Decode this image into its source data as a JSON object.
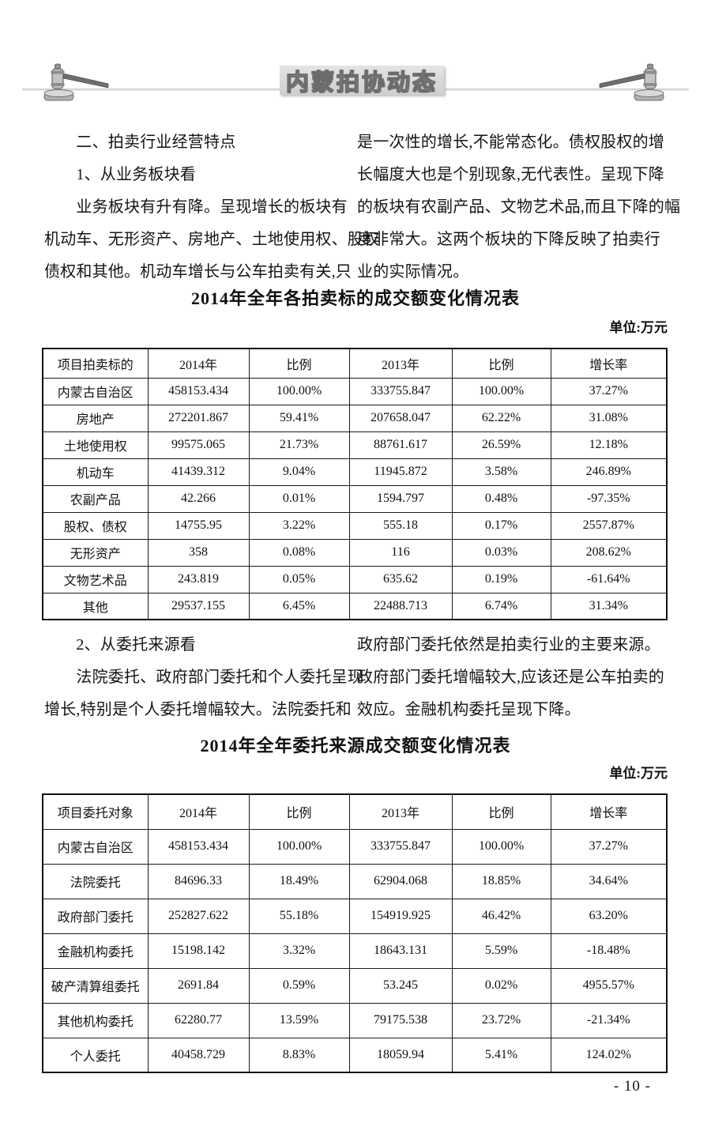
{
  "header": {
    "title": "内蒙拍协动态",
    "left_icon": "gavel-icon",
    "right_icon": "gavel-icon"
  },
  "body": {
    "section1": {
      "left_lines": [
        "　　二、拍卖行业经营特点",
        "　　1、从业务板块看",
        "　　业务板块有升有降。呈现增长的板块有",
        "机动车、无形资产、房地产、土地使用权、股权",
        "债权和其他。机动车增长与公车拍卖有关,只"
      ],
      "right_lines": [
        "是一次性的增长,不能常态化。债权股权的增",
        "长幅度大也是个别现象,无代表性。呈现下降",
        "的板块有农副产品、文物艺术品,而且下降的幅",
        "度非常大。这两个板块的下降反映了拍卖行",
        "业的实际情况。"
      ]
    },
    "section2": {
      "left_lines": [
        "　　2、从委托来源看",
        "　　法院委托、政府部门委托和个人委托呈现",
        "增长,特别是个人委托增幅较大。法院委托和"
      ],
      "right_lines": [
        "政府部门委托依然是拍卖行业的主要来源。",
        "政府部门委托增幅较大,应该还是公车拍卖的",
        "效应。金融机构委托呈现下降。"
      ]
    }
  },
  "table1": {
    "title": "2014年全年各拍卖标的成交额变化情况表",
    "unit": "单位:万元",
    "headers": [
      "项目拍卖标的",
      "2014年",
      "比例",
      "2013年",
      "比例",
      "增长率"
    ],
    "rows": [
      [
        "内蒙古自治区",
        "458153.434",
        "100.00%",
        "333755.847",
        "100.00%",
        "37.27%"
      ],
      [
        "房地产",
        "272201.867",
        "59.41%",
        "207658.047",
        "62.22%",
        "31.08%"
      ],
      [
        "土地使用权",
        "99575.065",
        "21.73%",
        "88761.617",
        "26.59%",
        "12.18%"
      ],
      [
        "机动车",
        "41439.312",
        "9.04%",
        "11945.872",
        "3.58%",
        "246.89%"
      ],
      [
        "农副产品",
        "42.266",
        "0.01%",
        "1594.797",
        "0.48%",
        "-97.35%"
      ],
      [
        "股权、债权",
        "14755.95",
        "3.22%",
        "555.18",
        "0.17%",
        "2557.87%"
      ],
      [
        "无形资产",
        "358",
        "0.08%",
        "116",
        "0.03%",
        "208.62%"
      ],
      [
        "文物艺术品",
        "243.819",
        "0.05%",
        "635.62",
        "0.19%",
        "-61.64%"
      ],
      [
        "其他",
        "29537.155",
        "6.45%",
        "22488.713",
        "6.74%",
        "31.34%"
      ]
    ]
  },
  "table2": {
    "title": "2014年全年委托来源成交额变化情况表",
    "unit": "单位:万元",
    "headers": [
      "项目委托对象",
      "2014年",
      "比例",
      "2013年",
      "比例",
      "增长率"
    ],
    "rows": [
      [
        "内蒙古自治区",
        "458153.434",
        "100.00%",
        "333755.847",
        "100.00%",
        "37.27%"
      ],
      [
        "法院委托",
        "84696.33",
        "18.49%",
        "62904.068",
        "18.85%",
        "34.64%"
      ],
      [
        "政府部门委托",
        "252827.622",
        "55.18%",
        "154919.925",
        "46.42%",
        "63.20%"
      ],
      [
        "金融机构委托",
        "15198.142",
        "3.32%",
        "18643.131",
        "5.59%",
        "-18.48%"
      ],
      [
        "破产清算组委托",
        "2691.84",
        "0.59%",
        "53.245",
        "0.02%",
        "4955.57%"
      ],
      [
        "其他机构委托",
        "62280.77",
        "13.59%",
        "79175.538",
        "23.72%",
        "-21.34%"
      ],
      [
        "个人委托",
        "40458.729",
        "8.83%",
        "18059.94",
        "5.41%",
        "124.02%"
      ]
    ]
  },
  "footer": {
    "page_number": "- 10 -"
  }
}
